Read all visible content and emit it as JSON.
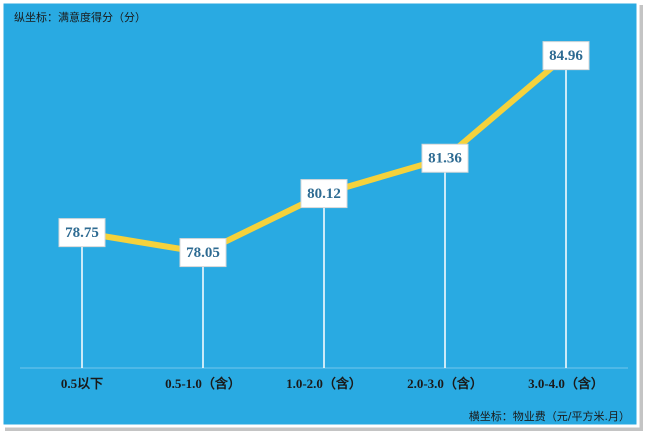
{
  "chart_data": {
    "type": "line",
    "y_axis_label": "纵坐标：满意度得分（分）",
    "x_axis_label": "横坐标：物业费（元/平方米.月）",
    "categories": [
      "0.5以下",
      "0.5-1.0（含）",
      "1.0-2.0（含）",
      "2.0-3.0（含）",
      "3.0-4.0（含）"
    ],
    "series": [
      {
        "name": "满意度得分",
        "color": "#f5d23c",
        "values": [
          78.75,
          78.05,
          80.12,
          81.36,
          84.96
        ]
      }
    ],
    "ylim": [
      74,
      86
    ]
  }
}
